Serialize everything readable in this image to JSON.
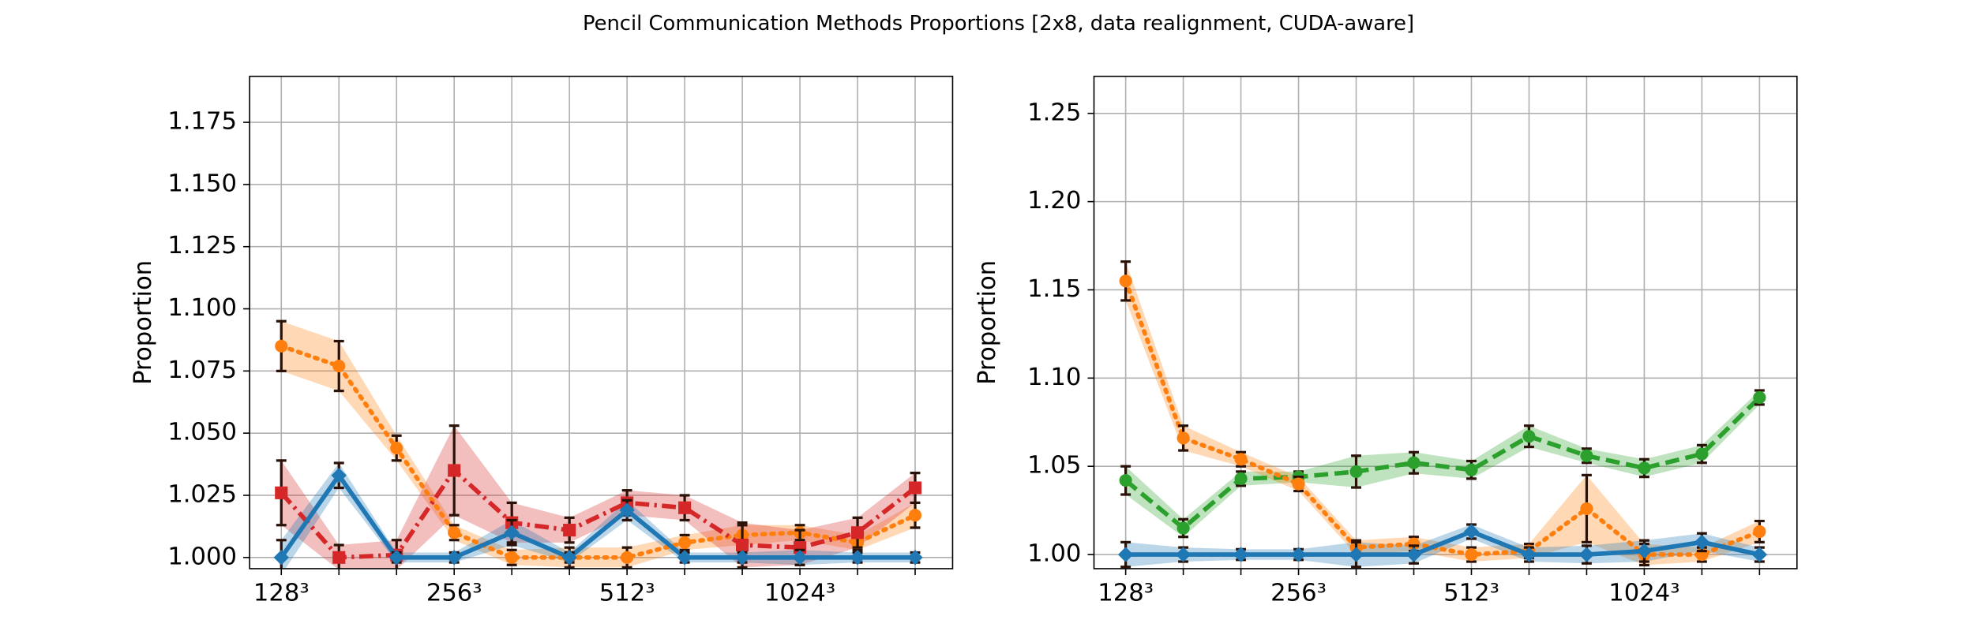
{
  "title": "Pencil Communication Methods Proportions [2x8, data realignment, CUDA-aware]",
  "chart_data": [
    {
      "type": "line",
      "ylabel": "Proportion",
      "grid": true,
      "categories": [
        "128³",
        null,
        null,
        "256³",
        null,
        null,
        "512³",
        null,
        null,
        "1024³",
        null,
        null
      ],
      "ylim": [
        0.9955,
        1.1935
      ],
      "yticks": [
        {
          "value": 1,
          "label": "1.000"
        },
        {
          "value": 1.025,
          "label": "1.025"
        },
        {
          "value": 1.05,
          "label": "1.050"
        },
        {
          "value": 1.075,
          "label": "1.075"
        },
        {
          "value": 1.1,
          "label": "1.100"
        },
        {
          "value": 1.125,
          "label": "1.125"
        },
        {
          "value": 1.15,
          "label": "1.150"
        },
        {
          "value": 1.175,
          "label": "1.175"
        }
      ],
      "series": [
        {
          "color": "#ff7f0e",
          "dash": "dotted",
          "marker": "circle",
          "values": [
            1.085,
            1.077,
            1.044,
            1.01,
            1.0,
            1.0,
            1.0,
            1.006,
            1.009,
            1.01,
            1.006,
            1.017
          ],
          "errors": [
            0.01,
            0.01,
            0.005,
            0.003,
            0.003,
            0.004,
            0.004,
            0.003,
            0.004,
            0.003,
            0.003,
            0.005
          ]
        },
        {
          "color": "#d62728",
          "dash": "dashdot",
          "marker": "square",
          "values": [
            1.026,
            1.0,
            1.001,
            1.035,
            1.014,
            1.011,
            1.022,
            1.02,
            1.005,
            1.004,
            1.01,
            1.028
          ],
          "errors": [
            0.013,
            0.005,
            0.006,
            0.018,
            0.008,
            0.005,
            0.005,
            0.005,
            0.009,
            0.007,
            0.006,
            0.006
          ]
        },
        {
          "color": "#1f77b4",
          "dash": "solid",
          "marker": "diamond",
          "values": [
            1.0,
            1.033,
            1.0,
            1.0,
            1.01,
            1.0,
            1.019,
            1.0,
            1.0,
            1.0,
            1.0,
            1.0
          ],
          "errors": [
            0.007,
            0.005,
            0.002,
            0.002,
            0.005,
            0.002,
            0.004,
            0.002,
            0.002,
            0.003,
            0.002,
            0.002
          ]
        }
      ]
    },
    {
      "type": "line",
      "ylabel": "Proportion",
      "grid": true,
      "categories": [
        "128³",
        null,
        null,
        "256³",
        null,
        null,
        "512³",
        null,
        null,
        "1024³",
        null,
        null
      ],
      "ylim": [
        0.992,
        1.271
      ],
      "yticks": [
        {
          "value": 1,
          "label": "1.00"
        },
        {
          "value": 1.05,
          "label": "1.05"
        },
        {
          "value": 1.1,
          "label": "1.10"
        },
        {
          "value": 1.15,
          "label": "1.15"
        },
        {
          "value": 1.2,
          "label": "1.20"
        },
        {
          "value": 1.25,
          "label": "1.25"
        }
      ],
      "series": [
        {
          "color": "#2ca02c",
          "dash": "dashed",
          "marker": "circle",
          "values": [
            1.042,
            1.015,
            1.043,
            1.044,
            1.047,
            1.052,
            1.048,
            1.067,
            1.056,
            1.049,
            1.057,
            1.089
          ],
          "errors": [
            0.008,
            0.005,
            0.004,
            0.003,
            0.009,
            0.006,
            0.005,
            0.006,
            0.004,
            0.005,
            0.005,
            0.004
          ]
        },
        {
          "color": "#ff7f0e",
          "dash": "dotted",
          "marker": "circle",
          "values": [
            1.155,
            1.066,
            1.054,
            1.04,
            1.004,
            1.006,
            1.0,
            1.002,
            1.026,
            1.0,
            1.0,
            1.013
          ],
          "errors": [
            0.011,
            0.007,
            0.004,
            0.004,
            0.004,
            0.004,
            0.004,
            0.004,
            0.019,
            0.006,
            0.004,
            0.006
          ]
        },
        {
          "color": "#1f77b4",
          "dash": "solid",
          "marker": "diamond",
          "values": [
            1.0,
            1.0,
            1.0,
            1.0,
            1.0,
            1.0,
            1.013,
            1.0,
            1.0,
            1.002,
            1.007,
            1.0
          ],
          "errors": [
            0.007,
            0.004,
            0.003,
            0.003,
            0.007,
            0.005,
            0.004,
            0.004,
            0.005,
            0.006,
            0.005,
            0.004
          ]
        }
      ]
    }
  ]
}
